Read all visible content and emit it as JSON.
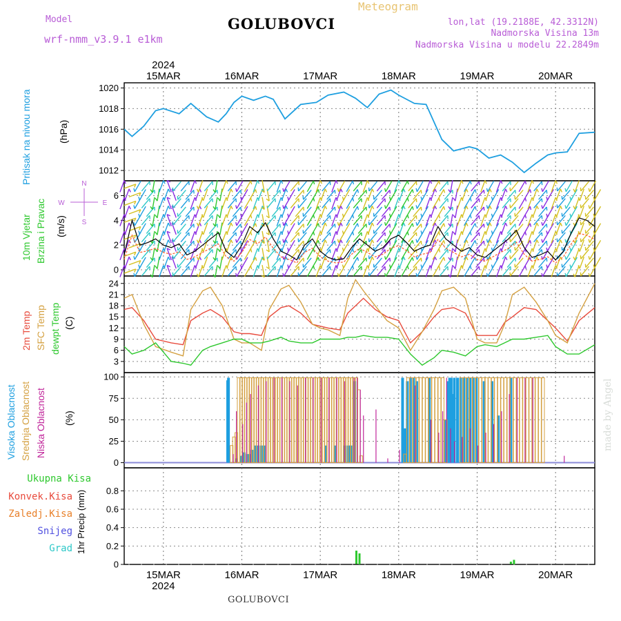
{
  "header": {
    "model_label": "Model",
    "model_name": "wrf-nmm_v3.9.1 e1km",
    "title": "GOLUBOVCI",
    "meteogram": "Meteogram",
    "lonlat": "lon,lat (19.2188E, 42.3312N)",
    "elevation": "Nadmorska Visina 13m",
    "model_elevation": "Nadmorska Visina u modelu 22.2849m",
    "footer_title": "GOLUBOVCI",
    "watermark": "made by Angel"
  },
  "time_axis": {
    "year": "2024",
    "start_day": 14.5,
    "end_day": 20.5,
    "ticks": [
      {
        "day": 15,
        "label": "15MAR"
      },
      {
        "day": 16,
        "label": "16MAR"
      },
      {
        "day": 17,
        "label": "17MAR"
      },
      {
        "day": 18,
        "label": "18MAR"
      },
      {
        "day": 19,
        "label": "19MAR"
      },
      {
        "day": 20,
        "label": "20MAR"
      }
    ]
  },
  "colors": {
    "pressure": "#1e9fe0",
    "t2m": "#e84a3c",
    "tsfc": "#d4a040",
    "dewpt": "#2ec82e",
    "cloud_high": "#1e9fe0",
    "cloud_mid": "#d4a040",
    "cloud_low": "#c0259a",
    "precip_total": "#2ec82e",
    "precip_conv": "#e84a3c",
    "precip_frz": "#e8802a",
    "snow": "#5050e0",
    "graupel": "#2ec8c8",
    "wind_label": "#2ec82e",
    "compass": "#b85cd6"
  },
  "panels": {
    "pressure": {
      "label": "Pritisak na nivou mora",
      "unit": "(hPa)",
      "ylim": [
        1011,
        1020.5
      ],
      "ticks": [
        1012,
        1014,
        1016,
        1018,
        1020
      ]
    },
    "wind": {
      "label1": "10m Vjetar",
      "label2": "Brzina i Pravac",
      "unit": "(m/s)",
      "compass_n": "N",
      "compass_s": "S",
      "compass_e": "E",
      "compass_w": "W",
      "ylim": [
        -0.5,
        7.2
      ],
      "ticks": [
        0,
        2,
        4,
        6
      ]
    },
    "temp": {
      "label1": "2m Temp",
      "label2": "SFC Temp",
      "label3": "dewpt Temp",
      "unit": "(C)",
      "ylim": [
        0,
        26
      ],
      "ticks": [
        3,
        6,
        9,
        12,
        15,
        18,
        21,
        24
      ]
    },
    "cloud": {
      "label1": "Visoka Oblacnost",
      "label2": "Srednja Oblacnost",
      "label3": "Niska Oblacnost",
      "unit": "(%)",
      "ylim": [
        -6,
        105
      ],
      "ticks": [
        0,
        25,
        50,
        75,
        100
      ]
    },
    "precip": {
      "label1": "Ukupna Kisa",
      "label2": "Konvek.Kisa",
      "label3": "Zaledj.Kisa",
      "label4": "Snijeg",
      "label5": "Grad",
      "ylabel": "1hr Precip (mm)",
      "ylim": [
        0,
        1.05
      ],
      "ticks": [
        "0",
        "0.2",
        "0.4",
        "0.6",
        "0.8"
      ]
    }
  },
  "chart_data": [
    {
      "type": "line",
      "name": "pressure",
      "x": [
        14.5,
        14.6,
        14.75,
        14.9,
        15.0,
        15.2,
        15.35,
        15.55,
        15.7,
        15.8,
        15.9,
        16.0,
        16.15,
        16.3,
        16.4,
        16.55,
        16.75,
        16.95,
        17.1,
        17.3,
        17.45,
        17.6,
        17.75,
        17.9,
        18.0,
        18.2,
        18.35,
        18.55,
        18.7,
        18.9,
        19.0,
        19.15,
        19.3,
        19.45,
        19.6,
        19.75,
        19.9,
        20.0,
        20.15,
        20.3,
        20.5
      ],
      "y": [
        1016.0,
        1015.3,
        1016.3,
        1017.8,
        1018.0,
        1017.5,
        1018.5,
        1017.2,
        1016.7,
        1017.5,
        1018.6,
        1019.2,
        1018.8,
        1019.2,
        1018.9,
        1017.0,
        1018.4,
        1018.6,
        1019.3,
        1019.6,
        1019.0,
        1018.1,
        1019.4,
        1019.8,
        1019.3,
        1018.5,
        1018.4,
        1015.0,
        1013.9,
        1014.3,
        1014.1,
        1013.2,
        1013.5,
        1012.8,
        1011.8,
        1012.7,
        1013.5,
        1013.7,
        1013.8,
        1015.6,
        1015.7
      ]
    },
    {
      "type": "line",
      "name": "wind",
      "note_series": [
        "speed"
      ],
      "x": [
        14.5,
        14.6,
        14.7,
        14.8,
        14.9,
        15.0,
        15.1,
        15.2,
        15.3,
        15.4,
        15.5,
        15.6,
        15.7,
        15.8,
        15.9,
        16.0,
        16.1,
        16.2,
        16.3,
        16.4,
        16.5,
        16.6,
        16.7,
        16.8,
        16.9,
        17.0,
        17.1,
        17.2,
        17.3,
        17.4,
        17.5,
        17.6,
        17.7,
        17.8,
        17.9,
        18.0,
        18.1,
        18.2,
        18.3,
        18.4,
        18.5,
        18.6,
        18.7,
        18.8,
        18.9,
        19.0,
        19.1,
        19.2,
        19.3,
        19.4,
        19.5,
        19.6,
        19.7,
        19.8,
        19.9,
        20.0,
        20.1,
        20.2,
        20.3,
        20.4,
        20.5
      ],
      "speed": [
        1.2,
        4.0,
        2.0,
        2.2,
        2.5,
        2.0,
        1.8,
        2.1,
        1.2,
        1.5,
        2.0,
        2.5,
        3.0,
        1.5,
        1.0,
        2.0,
        3.5,
        3.0,
        3.8,
        2.5,
        1.5,
        1.2,
        0.8,
        2.0,
        2.5,
        1.5,
        1.0,
        0.8,
        0.9,
        1.8,
        2.5,
        2.0,
        1.5,
        1.8,
        2.5,
        2.8,
        2.2,
        1.5,
        1.8,
        2.0,
        3.5,
        2.5,
        2.0,
        1.5,
        1.8,
        1.2,
        1.0,
        1.5,
        2.0,
        2.5,
        3.2,
        1.8,
        1.0,
        1.2,
        1.5,
        0.8,
        1.5,
        3.0,
        4.2,
        4.0,
        3.5
      ],
      "direction_deg": [
        200,
        250,
        30,
        220,
        10,
        200,
        160,
        40,
        220,
        200,
        20,
        220,
        10,
        200,
        220,
        30,
        210,
        200,
        350,
        220,
        200,
        30,
        220,
        40,
        210,
        200,
        220,
        200,
        30,
        210,
        220,
        200,
        40,
        220,
        30,
        200,
        210,
        220,
        30,
        200,
        210,
        220,
        10,
        200,
        210,
        220,
        200,
        30,
        200,
        220,
        40,
        210,
        200,
        220,
        30,
        200,
        40,
        30,
        20,
        40,
        30
      ],
      "ylim": [
        -0.5,
        7.2
      ]
    },
    {
      "type": "line",
      "name": "temperature",
      "x": [
        14.5,
        14.6,
        14.75,
        14.9,
        15.1,
        15.25,
        15.35,
        15.5,
        15.6,
        15.75,
        15.9,
        16.0,
        16.1,
        16.25,
        16.35,
        16.5,
        16.6,
        16.75,
        16.9,
        17.0,
        17.1,
        17.25,
        17.35,
        17.45,
        17.55,
        17.7,
        17.85,
        18.0,
        18.15,
        18.3,
        18.45,
        18.55,
        18.7,
        18.85,
        19.0,
        19.1,
        19.25,
        19.35,
        19.45,
        19.6,
        19.75,
        19.9,
        20.0,
        20.15,
        20.3,
        20.5
      ],
      "series": [
        {
          "name": "2m Temp",
          "values": [
            17,
            17.5,
            14,
            9,
            8,
            7.5,
            14,
            16,
            17,
            15,
            11,
            10.5,
            10.5,
            10,
            15,
            17.5,
            18,
            16,
            13,
            12.5,
            12,
            11.5,
            16,
            18,
            20,
            17,
            15,
            14,
            8,
            11,
            15,
            17,
            17.5,
            16,
            10,
            10,
            10,
            13.5,
            15,
            17.5,
            17,
            14,
            12,
            8.5,
            14,
            17.5
          ]
        },
        {
          "name": "SFC Temp",
          "values": [
            20,
            21,
            13,
            7,
            5.5,
            4.5,
            17,
            22,
            23,
            18,
            9,
            8,
            8,
            6,
            17,
            22.5,
            23.5,
            19,
            13,
            12,
            11.5,
            10,
            20,
            25,
            22,
            18,
            14,
            12,
            6,
            11,
            17,
            22,
            23,
            20,
            9,
            8,
            8,
            13,
            21,
            23,
            19,
            14,
            10,
            8,
            16,
            24
          ]
        },
        {
          "name": "dewpt Temp",
          "values": [
            7,
            5,
            6,
            8,
            3,
            2.5,
            2,
            6,
            7,
            8,
            9,
            9,
            8,
            8,
            8.5,
            9.5,
            8.5,
            8,
            8,
            9,
            9,
            9,
            9.5,
            9.5,
            10,
            9.5,
            9.5,
            9,
            5,
            2,
            4,
            6,
            5.5,
            4.5,
            7,
            7.5,
            7,
            8,
            9,
            9,
            9.5,
            10,
            7,
            5,
            5,
            7.5
          ]
        }
      ]
    },
    {
      "type": "bar",
      "name": "cloudiness",
      "series": [
        {
          "name": "Visoka Oblacnost",
          "x": [
            15.83,
            15.84,
            15.94,
            16.0,
            16.04,
            16.08,
            16.1,
            16.14,
            16.18,
            16.22,
            16.26,
            16.3,
            17.08,
            17.2,
            17.33,
            17.37,
            17.4,
            17.45,
            18.06,
            18.09,
            18.12,
            18.16,
            18.2,
            18.24,
            18.4,
            18.6,
            18.64,
            18.66,
            18.68,
            18.7,
            18.72,
            18.76,
            18.8,
            18.84,
            18.88,
            18.92,
            18.96,
            19.0,
            19.1,
            19.2,
            19.28,
            19.44
          ],
          "values": [
            96,
            99,
            5,
            8,
            12,
            10,
            10,
            15,
            20,
            20,
            20,
            20,
            20,
            20,
            20,
            20,
            20,
            95,
            99,
            40,
            95,
            99,
            99,
            95,
            99,
            50,
            95,
            99,
            99,
            80,
            99,
            99,
            99,
            99,
            99,
            99,
            99,
            99,
            95,
            95,
            55,
            99
          ]
        },
        {
          "name": "Srednja Oblacnost",
          "x": [
            15.87,
            15.9,
            15.93,
            15.96,
            15.99,
            16.02,
            16.05,
            16.08,
            16.11,
            16.14,
            16.17,
            16.2,
            16.23,
            16.26,
            16.29,
            16.32,
            16.35,
            16.38,
            16.41,
            16.44,
            16.47,
            16.5,
            16.53,
            16.56,
            16.59,
            16.62,
            16.65,
            16.68,
            16.71,
            16.74,
            16.77,
            16.8,
            16.83,
            16.86,
            16.89,
            16.92,
            16.95,
            16.98,
            17.01,
            17.04,
            17.07,
            17.1,
            17.13,
            17.16,
            17.19,
            17.22,
            17.25,
            17.28,
            17.31,
            17.34,
            17.37,
            17.4,
            17.43,
            17.46,
            17.49,
            17.52,
            18.08,
            18.12,
            18.16,
            18.2,
            18.24,
            18.28,
            18.32,
            18.36,
            18.4,
            18.44,
            18.48,
            18.52,
            18.56,
            18.6,
            18.8,
            18.84,
            18.88,
            18.92,
            18.96,
            19.0,
            19.04,
            19.08,
            19.12,
            19.16,
            19.2,
            19.24,
            19.28,
            19.32,
            19.36,
            19.4,
            19.44,
            19.48,
            19.52,
            19.56,
            19.6,
            19.64,
            19.68,
            19.72,
            19.76,
            19.8,
            19.84
          ],
          "values": [
            20,
            30,
            35,
            99,
            99,
            99,
            99,
            99,
            99,
            99,
            99,
            99,
            99,
            99,
            99,
            99,
            99,
            99,
            99,
            99,
            99,
            99,
            99,
            99,
            99,
            99,
            99,
            99,
            99,
            99,
            99,
            99,
            99,
            99,
            99,
            99,
            99,
            99,
            99,
            99,
            99,
            99,
            99,
            99,
            99,
            99,
            99,
            99,
            99,
            99,
            99,
            99,
            99,
            99,
            85,
            8,
            10,
            99,
            99,
            99,
            99,
            99,
            99,
            99,
            99,
            99,
            99,
            99,
            99,
            50,
            99,
            99,
            99,
            99,
            99,
            99,
            99,
            99,
            99,
            99,
            99,
            99,
            99,
            99,
            99,
            99,
            99,
            99,
            99,
            99,
            99,
            99,
            99,
            99,
            99,
            99,
            99
          ]
        },
        {
          "name": "Niska Oblacnost",
          "x": [
            15.88,
            15.92,
            16.0,
            16.05,
            16.1,
            16.2,
            16.3,
            16.4,
            16.5,
            16.6,
            16.7,
            16.8,
            16.9,
            17.0,
            17.1,
            17.2,
            17.3,
            17.42,
            17.46,
            17.5,
            17.54,
            17.7,
            17.85,
            18.0,
            18.2,
            18.4,
            18.5,
            18.55,
            18.6,
            18.65,
            18.7,
            18.8,
            18.9,
            19.0,
            19.1,
            19.2,
            19.3,
            19.4,
            19.5,
            19.6,
            19.7,
            20.1
          ],
          "values": [
            10,
            60,
            45,
            70,
            80,
            90,
            95,
            99,
            99,
            95,
            90,
            99,
            99,
            99,
            99,
            99,
            95,
            99,
            99,
            85,
            55,
            62,
            5,
            15,
            90,
            50,
            35,
            60,
            99,
            40,
            25,
            30,
            40,
            20,
            35,
            45,
            60,
            80,
            99,
            99,
            99,
            8
          ]
        }
      ],
      "ylim": [
        0,
        100
      ]
    },
    {
      "type": "bar",
      "name": "precipitation",
      "series": [
        {
          "name": "Ukupna Kisa",
          "x": [
            17.46,
            17.5,
            19.43,
            19.47
          ],
          "values": [
            0.15,
            0.12,
            0.03,
            0.05
          ]
        },
        {
          "name": "Konvek.Kisa",
          "x": [],
          "values": []
        },
        {
          "name": "Zaledj.Kisa",
          "x": [],
          "values": []
        },
        {
          "name": "Snijeg",
          "x": [],
          "values": []
        },
        {
          "name": "Grad",
          "x": [],
          "values": []
        }
      ],
      "ylim": [
        0,
        1.0
      ]
    }
  ]
}
